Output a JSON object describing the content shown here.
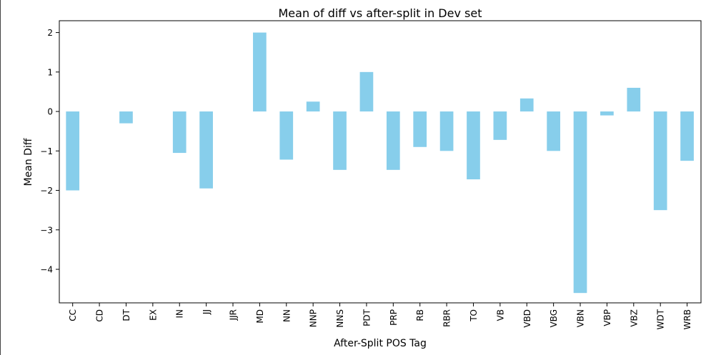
{
  "chart_data": {
    "type": "bar",
    "title": "Mean of diff vs after-split in Dev set",
    "xlabel": "After-Split POS Tag",
    "ylabel": "Mean Diff",
    "categories": [
      "CC",
      "CD",
      "DT",
      "EX",
      "IN",
      "JJ",
      "JJR",
      "MD",
      "NN",
      "NNP",
      "NNS",
      "PDT",
      "PRP",
      "RB",
      "RBR",
      "TO",
      "VB",
      "VBD",
      "VBG",
      "VBN",
      "VBP",
      "VBZ",
      "WDT",
      "WRB"
    ],
    "values": [
      -2.0,
      0.0,
      -0.3,
      0.0,
      -1.05,
      -1.95,
      0.0,
      2.0,
      -1.22,
      0.25,
      -1.48,
      1.0,
      -1.48,
      -0.9,
      -1.0,
      -1.72,
      -0.72,
      0.33,
      -1.0,
      -4.6,
      -0.1,
      0.6,
      -2.5,
      -1.25
    ],
    "yticks": [
      2,
      1,
      0,
      -1,
      -2,
      -3,
      -4
    ],
    "ylim": [
      -4.85,
      2.3
    ],
    "grid": false,
    "legend": "none",
    "bar_color": "#87ceeb"
  }
}
